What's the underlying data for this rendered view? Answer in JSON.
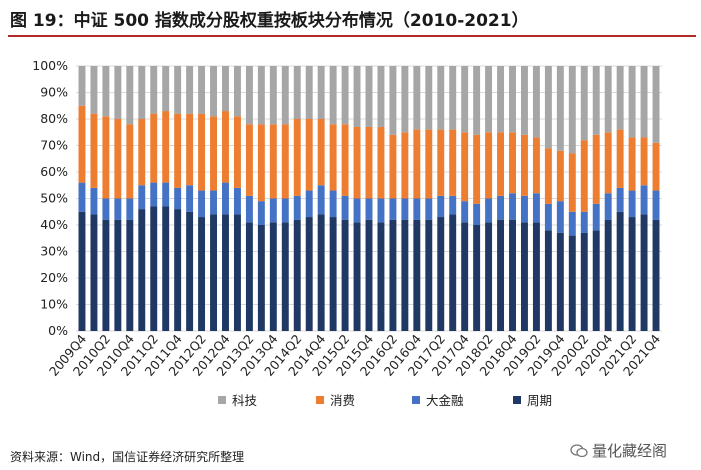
{
  "header": {
    "title": "图 19：中证 500 指数成分股权重按板块分布情况（2010-2021）"
  },
  "footer": {
    "source": "资料来源：Wind，国信证券经济研究所整理",
    "watermark": "量化藏经阁"
  },
  "colors": {
    "科技": "#a6a6a6",
    "消费": "#ed7d31",
    "大金融": "#4472c4",
    "周期": "#203864"
  },
  "chart_data": {
    "type": "bar",
    "stacked": true,
    "title": "",
    "xlabel": "",
    "ylabel": "",
    "ylim": [
      0,
      100
    ],
    "y_ticks": [
      "0%",
      "10%",
      "20%",
      "30%",
      "40%",
      "50%",
      "60%",
      "70%",
      "80%",
      "90%",
      "100%"
    ],
    "legend_position": "bottom",
    "categories": [
      "2009Q4",
      "2010Q1",
      "2010Q2",
      "2010Q3",
      "2010Q4",
      "2011Q1",
      "2011Q2",
      "2011Q3",
      "2011Q4",
      "2012Q1",
      "2012Q2",
      "2012Q3",
      "2012Q4",
      "2013Q1",
      "2013Q2",
      "2013Q3",
      "2013Q4",
      "2014Q1",
      "2014Q2",
      "2014Q3",
      "2014Q4",
      "2015Q1",
      "2015Q2",
      "2015Q3",
      "2015Q4",
      "2016Q1",
      "2016Q2",
      "2016Q3",
      "2016Q4",
      "2017Q1",
      "2017Q2",
      "2017Q3",
      "2017Q4",
      "2018Q1",
      "2018Q2",
      "2018Q3",
      "2018Q4",
      "2019Q1",
      "2019Q2",
      "2019Q3",
      "2019Q4",
      "2020Q1",
      "2020Q2",
      "2020Q3",
      "2020Q4",
      "2021Q1",
      "2021Q2",
      "2021Q3",
      "2021Q4"
    ],
    "tick_labels": [
      "2009Q4",
      "2010Q2",
      "2010Q4",
      "2011Q2",
      "2011Q4",
      "2012Q2",
      "2012Q4",
      "2013Q2",
      "2013Q4",
      "2014Q2",
      "2014Q4",
      "2015Q2",
      "2015Q4",
      "2016Q2",
      "2016Q4",
      "2017Q2",
      "2017Q4",
      "2018Q2",
      "2018Q4",
      "2019Q2",
      "2019Q4",
      "2020Q2",
      "2020Q4",
      "2021Q2",
      "2021Q4"
    ],
    "series": [
      {
        "name": "周期",
        "values": [
          45,
          44,
          42,
          42,
          42,
          46,
          47,
          47,
          46,
          45,
          43,
          44,
          44,
          44,
          41,
          40,
          41,
          41,
          42,
          43,
          44,
          43,
          42,
          41,
          42,
          41,
          42,
          42,
          42,
          42,
          43,
          44,
          41,
          40,
          41,
          42,
          42,
          41,
          41,
          38,
          37,
          36,
          37,
          38,
          42,
          45,
          43,
          44,
          42
        ]
      },
      {
        "name": "大金融",
        "values": [
          11,
          10,
          8,
          8,
          8,
          9,
          9,
          9,
          8,
          10,
          10,
          9,
          12,
          10,
          10,
          9,
          9,
          9,
          9,
          10,
          11,
          10,
          9,
          9,
          8,
          9,
          8,
          8,
          8,
          8,
          8,
          7,
          8,
          8,
          9,
          9,
          10,
          10,
          11,
          10,
          12,
          9,
          8,
          10,
          10,
          9,
          10,
          11,
          11
        ]
      },
      {
        "name": "消费",
        "values": [
          29,
          28,
          31,
          30,
          28,
          25,
          26,
          27,
          28,
          27,
          29,
          28,
          27,
          27,
          27,
          29,
          28,
          28,
          29,
          27,
          25,
          25,
          27,
          27,
          27,
          27,
          24,
          25,
          26,
          26,
          25,
          25,
          26,
          26,
          25,
          24,
          23,
          23,
          21,
          21,
          19,
          22,
          27,
          26,
          23,
          22,
          20,
          18,
          18
        ]
      },
      {
        "name": "科技",
        "values": [
          15,
          18,
          19,
          20,
          22,
          20,
          18,
          17,
          18,
          18,
          18,
          19,
          17,
          19,
          22,
          22,
          22,
          22,
          20,
          20,
          20,
          22,
          22,
          23,
          23,
          23,
          26,
          25,
          24,
          24,
          24,
          24,
          25,
          26,
          25,
          25,
          25,
          26,
          27,
          31,
          32,
          33,
          28,
          26,
          25,
          24,
          27,
          27,
          29
        ]
      }
    ],
    "legend_order": [
      "科技",
      "消费",
      "大金融",
      "周期"
    ]
  }
}
